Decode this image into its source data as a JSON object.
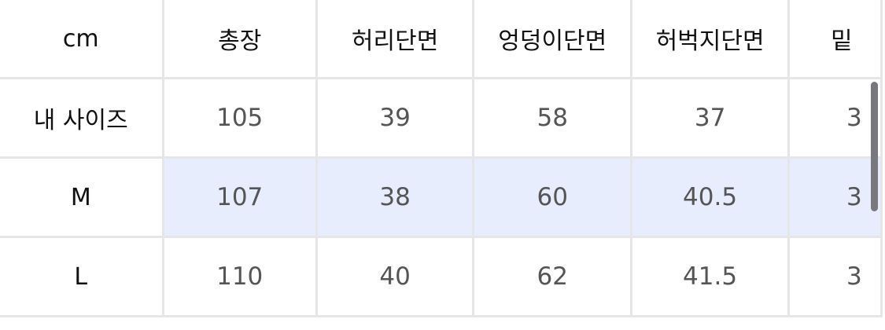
{
  "table": {
    "headers": [
      "cm",
      "총장",
      "허리단면",
      "엉덩이단면",
      "허벅지단면",
      "밑"
    ],
    "rows": [
      {
        "label": "내 사이즈",
        "values": [
          "105",
          "39",
          "58",
          "37",
          "3"
        ]
      },
      {
        "label": "M",
        "values": [
          "107",
          "38",
          "60",
          "40.5",
          "3"
        ],
        "highlighted": true
      },
      {
        "label": "L",
        "values": [
          "110",
          "40",
          "62",
          "41.5",
          "3"
        ]
      }
    ]
  },
  "colors": {
    "highlight_row": "#e8edfd",
    "grid": "#e6e6e8",
    "scrollbar": "#78787e"
  }
}
